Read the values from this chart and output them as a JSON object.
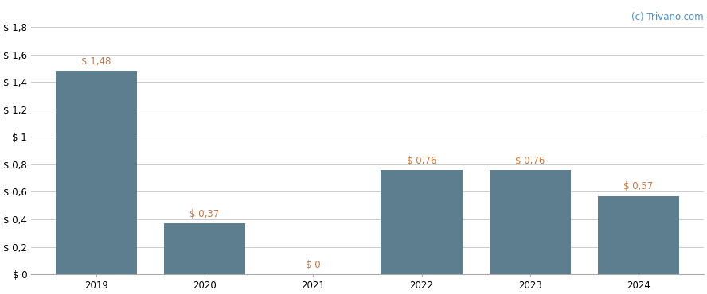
{
  "categories": [
    "2019",
    "2020",
    "2021",
    "2022",
    "2023",
    "2024"
  ],
  "values": [
    1.48,
    0.37,
    0.0,
    0.76,
    0.76,
    0.57
  ],
  "labels": [
    "$ 1,48",
    "$ 0,37",
    "$ 0",
    "$ 0,76",
    "$ 0,76",
    "$ 0,57"
  ],
  "bar_color": "#5d7e8e",
  "ylim": [
    0,
    1.8
  ],
  "yticks": [
    0,
    0.2,
    0.4,
    0.6,
    0.8,
    1.0,
    1.2,
    1.4,
    1.6,
    1.8
  ],
  "ytick_labels": [
    "$ 0",
    "$ 0,2",
    "$ 0,4",
    "$ 0,6",
    "$ 0,8",
    "$ 1",
    "$ 1,2",
    "$ 1,4",
    "$ 1,6",
    "$ 1,8"
  ],
  "background_color": "#ffffff",
  "grid_color": "#cccccc",
  "watermark": "(c) Trivano.com",
  "watermark_color": "#4a90d9",
  "label_color": "#c87941",
  "label_fontsize": 8.5,
  "tick_fontsize": 8.5,
  "watermark_fontsize": 8.5,
  "bar_width": 0.75
}
